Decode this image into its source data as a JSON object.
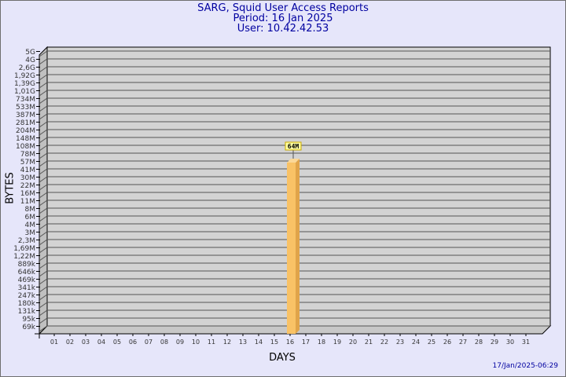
{
  "header": {
    "title": "SARG, Squid User Access Reports",
    "period": "Period: 16 Jan 2025",
    "user": "User: 10.42.42.53"
  },
  "footer": {
    "timestamp": "17/Jan/2025-06:29"
  },
  "chart_data": {
    "type": "bar",
    "title": "SARG, Squid User Access Reports",
    "xlabel": "DAYS",
    "ylabel": "BYTES",
    "y_scale": "log",
    "y_tick_labels": [
      "5G",
      "4G",
      "2,6G",
      "1,92G",
      "1,39G",
      "1,01G",
      "734M",
      "533M",
      "387M",
      "281M",
      "204M",
      "148M",
      "108M",
      "78M",
      "57M",
      "41M",
      "30M",
      "22M",
      "16M",
      "11M",
      "8M",
      "6M",
      "4M",
      "3M",
      "2,3M",
      "1,69M",
      "1,22M",
      "889k",
      "646k",
      "469k",
      "341k",
      "247k",
      "180k",
      "131k",
      "95k",
      "69k"
    ],
    "categories": [
      "01",
      "02",
      "03",
      "04",
      "05",
      "06",
      "07",
      "08",
      "09",
      "10",
      "11",
      "12",
      "13",
      "14",
      "15",
      "16",
      "17",
      "18",
      "19",
      "20",
      "21",
      "22",
      "23",
      "24",
      "25",
      "26",
      "27",
      "28",
      "29",
      "30",
      "31"
    ],
    "bars": [
      {
        "day": "16",
        "value_label": "64M"
      }
    ],
    "grid": true,
    "colors": {
      "bar": "#f9c266",
      "bar_side": "#e0a44a",
      "wall": "#d3d3d3",
      "label_bg": "#ffffa0"
    }
  }
}
